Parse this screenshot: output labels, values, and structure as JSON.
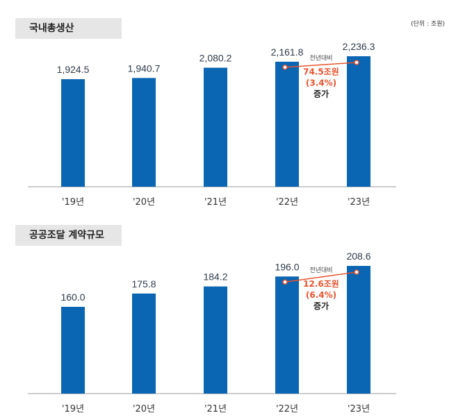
{
  "unit_label": "(단위 : 조원)",
  "colors": {
    "bar": "#0a66b2",
    "accent": "#e8532e",
    "header_bg": "#e6e6e6"
  },
  "chart_data": [
    {
      "type": "bar",
      "title": "국내총생산",
      "categories": [
        "'19년",
        "'20년",
        "'21년",
        "'22년",
        "'23년"
      ],
      "values": [
        1924.5,
        1940.7,
        2080.2,
        2161.8,
        2236.3
      ],
      "labels": [
        "1,924.5",
        "1,940.7",
        "2,080.2",
        "2,161.8",
        "2,236.3"
      ],
      "ylim": [
        462,
        2236.3
      ],
      "annotation": {
        "line1": "전년대비",
        "line2": "74.5조원",
        "line3": "(3.4%)",
        "line4": "증가"
      }
    },
    {
      "type": "bar",
      "title": "공공조달 계약규모",
      "categories": [
        "'19년",
        "'20년",
        "'21년",
        "'22년",
        "'23년"
      ],
      "values": [
        160.0,
        175.8,
        184.2,
        196.0,
        208.6
      ],
      "labels": [
        "160.0",
        "175.8",
        "184.2",
        "196.0",
        "208.6"
      ],
      "ylim": [
        57,
        208.6
      ],
      "annotation": {
        "line1": "전년대비",
        "line2": "12.6조원",
        "line3": "(6.4%)",
        "line4": "증가"
      }
    }
  ]
}
